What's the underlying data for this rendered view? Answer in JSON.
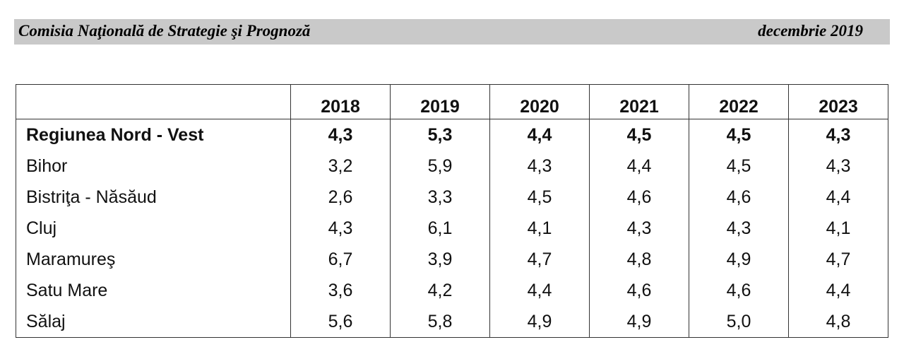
{
  "header": {
    "left_title": "Comisia Naţională de Strategie şi Prognoză",
    "right_date": "decembrie 2019"
  },
  "table": {
    "columns": [
      "2018",
      "2019",
      "2020",
      "2021",
      "2022",
      "2023"
    ],
    "rows": [
      {
        "label": "Regiunea Nord - Vest",
        "values": [
          "4,3",
          "5,3",
          "4,4",
          "4,5",
          "4,5",
          "4,3"
        ],
        "bold": true
      },
      {
        "label": "Bihor",
        "values": [
          "3,2",
          "5,9",
          "4,3",
          "4,4",
          "4,5",
          "4,3"
        ]
      },
      {
        "label": "Bistriţa - Năsăud",
        "values": [
          "2,6",
          "3,3",
          "4,5",
          "4,6",
          "4,6",
          "4,4"
        ]
      },
      {
        "label": "Cluj",
        "values": [
          "4,3",
          "6,1",
          "4,1",
          "4,3",
          "4,3",
          "4,1"
        ]
      },
      {
        "label": "Maramureş",
        "values": [
          "6,7",
          "3,9",
          "4,7",
          "4,8",
          "4,9",
          "4,7"
        ]
      },
      {
        "label": "Satu Mare",
        "values": [
          "3,6",
          "4,2",
          "4,4",
          "4,6",
          "4,6",
          "4,4"
        ]
      },
      {
        "label": "Sălaj",
        "values": [
          "5,6",
          "5,8",
          "4,9",
          "4,9",
          "5,0",
          "4,8"
        ]
      }
    ]
  }
}
